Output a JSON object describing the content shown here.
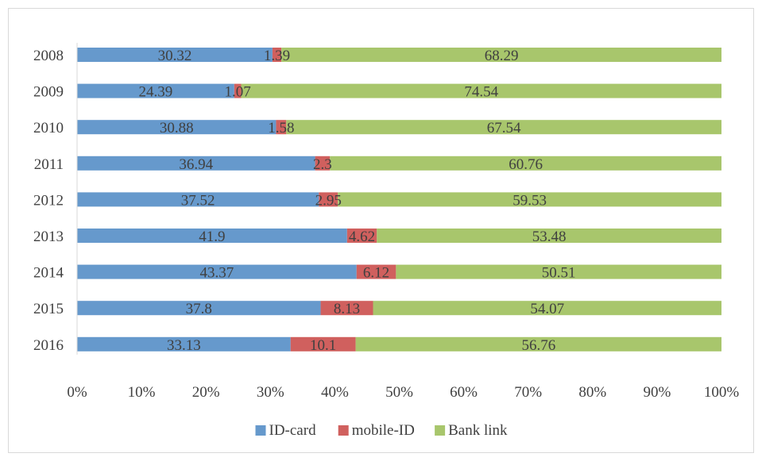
{
  "chart_data": {
    "type": "bar",
    "orientation": "horizontal",
    "stacked": "percent",
    "categories": [
      "2008",
      "2009",
      "2010",
      "2011",
      "2012",
      "2013",
      "2014",
      "2015",
      "2016"
    ],
    "series": [
      {
        "name": "ID-card",
        "color": "#6699cc",
        "values": [
          30.32,
          24.39,
          30.88,
          36.94,
          37.52,
          41.9,
          43.37,
          37.8,
          33.13
        ]
      },
      {
        "name": "mobile-ID",
        "color": "#d0605e",
        "values": [
          1.39,
          1.07,
          1.58,
          2.3,
          2.95,
          4.62,
          6.12,
          8.13,
          10.1
        ]
      },
      {
        "name": "Bank link",
        "color": "#a8c66c",
        "values": [
          68.29,
          74.54,
          67.54,
          60.76,
          59.53,
          53.48,
          50.51,
          54.07,
          56.76
        ]
      }
    ],
    "data_labels": [
      [
        "30.32",
        "24.39",
        "30.88",
        "36.94",
        "37.52",
        "41.9",
        "43.37",
        "37.8",
        "33.13"
      ],
      [
        "1.39",
        "1.07",
        "1.58",
        "2.3",
        "2.95",
        "4.62",
        "6.12",
        "8.13",
        "10.1"
      ],
      [
        "68.29",
        "74.54",
        "67.54",
        "60.76",
        "59.53",
        "53.48",
        "50.51",
        "54.07",
        "56.76"
      ]
    ],
    "x_ticks": [
      "0%",
      "10%",
      "20%",
      "30%",
      "40%",
      "50%",
      "60%",
      "70%",
      "80%",
      "90%",
      "100%"
    ],
    "xlim": [
      0,
      100
    ],
    "title": "",
    "xlabel": "",
    "ylabel": "",
    "grid": false,
    "legend_position": "bottom"
  }
}
